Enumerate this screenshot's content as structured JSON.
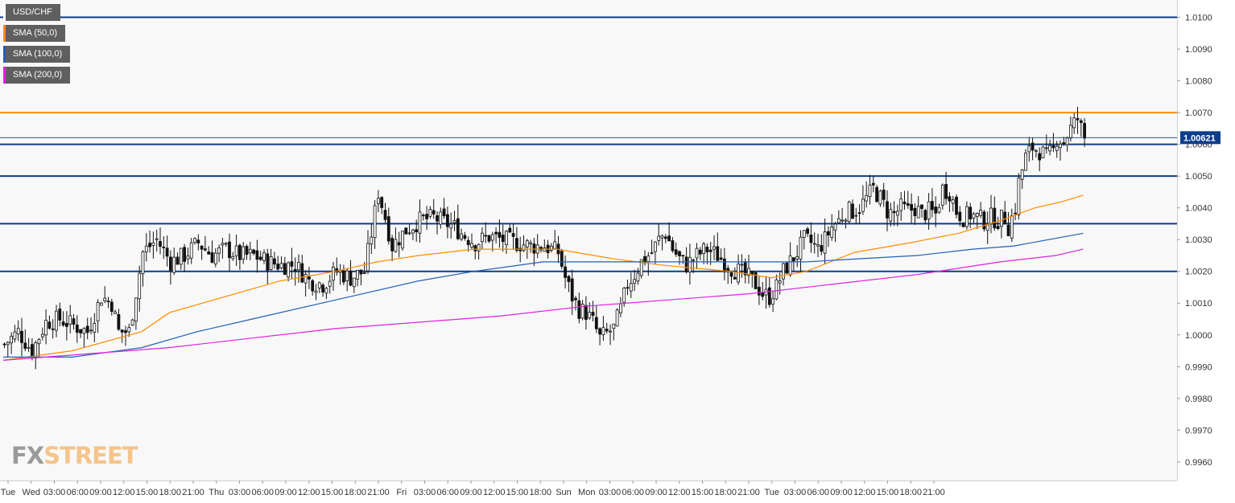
{
  "chart_data": {
    "type": "candlestick",
    "symbol": "USD/CHF",
    "last_price": "1.00621",
    "ylim": [
      0.9952,
      1.0104
    ],
    "y_ticks": [
      "1.0100",
      "1.0090",
      "1.0080",
      "1.0070",
      "1.0060",
      "1.0050",
      "1.0040",
      "1.0030",
      "1.0020",
      "1.0010",
      "1.0000",
      "0.9990",
      "0.9980",
      "0.9970",
      "0.9960"
    ],
    "x_ticks": [
      "Tue",
      "Wed",
      "03:00",
      "06:00",
      "09:00",
      "12:00",
      "15:00",
      "18:00",
      "21:00",
      "Thu",
      "03:00",
      "06:00",
      "09:00",
      "12:00",
      "15:00",
      "18:00",
      "21:00",
      "Fri",
      "03:00",
      "06:00",
      "09:00",
      "12:00",
      "15:00",
      "18:00",
      "Sun",
      "Mon",
      "03:00",
      "06:00",
      "09:00",
      "12:00",
      "15:00",
      "18:00",
      "21:00",
      "Tue",
      "03:00",
      "06:00",
      "09:00",
      "12:00",
      "15:00",
      "18:00",
      "21:00"
    ],
    "horizontal_levels": [
      {
        "value": 1.01,
        "color": "#0d3d8c"
      },
      {
        "value": 1.007,
        "color": "#ff8c00"
      },
      {
        "value": 1.006,
        "color": "#0d3d8c"
      },
      {
        "value": 1.005,
        "color": "#0d3d8c"
      },
      {
        "value": 1.0035,
        "color": "#0d3d8c"
      },
      {
        "value": 1.002,
        "color": "#0d3d8c"
      }
    ],
    "price_path": [
      [
        0,
        0.9997
      ],
      [
        4,
        1.0001
      ],
      [
        8,
        0.9995
      ],
      [
        12,
        1.0004
      ],
      [
        16,
        1.0005
      ],
      [
        20,
        1.0003
      ],
      [
        24,
        1.0001
      ],
      [
        28,
        1.0012
      ],
      [
        31,
        1.001
      ],
      [
        33,
        1.0001
      ],
      [
        36,
        1.0001
      ],
      [
        40,
        1.0026
      ],
      [
        44,
        1.003
      ],
      [
        48,
        1.0023
      ],
      [
        52,
        1.0025
      ],
      [
        56,
        1.0029
      ],
      [
        60,
        1.0025
      ],
      [
        64,
        1.0027
      ],
      [
        68,
        1.0025
      ],
      [
        72,
        1.0025
      ],
      [
        76,
        1.0023
      ],
      [
        80,
        1.0022
      ],
      [
        84,
        1.0022
      ],
      [
        88,
        1.0017
      ],
      [
        92,
        1.0016
      ],
      [
        96,
        1.002
      ],
      [
        100,
        1.0018
      ],
      [
        104,
        1.002
      ],
      [
        106,
        1.0032
      ],
      [
        108,
        1.0045
      ],
      [
        110,
        1.0037
      ],
      [
        112,
        1.0028
      ],
      [
        116,
        1.0033
      ],
      [
        120,
        1.0036
      ],
      [
        124,
        1.0037
      ],
      [
        128,
        1.0035
      ],
      [
        130,
        1.0034
      ],
      [
        132,
        1.0032
      ],
      [
        136,
        1.0029
      ],
      [
        140,
        1.0031
      ],
      [
        144,
        1.003
      ],
      [
        148,
        1.0029
      ],
      [
        152,
        1.0028
      ],
      [
        156,
        1.0028
      ],
      [
        160,
        1.0026
      ],
      [
        162,
        1.0018
      ],
      [
        164,
        1.0012
      ],
      [
        166,
        1.0008
      ],
      [
        168,
        1.0007
      ],
      [
        170,
        1.0004
      ],
      [
        172,
        0.9999
      ],
      [
        176,
        1.0002
      ],
      [
        178,
        1.0008
      ],
      [
        180,
        1.0016
      ],
      [
        182,
        1.0019
      ],
      [
        184,
        1.0023
      ],
      [
        187,
        1.0026
      ],
      [
        189,
        1.003
      ],
      [
        191,
        1.0032
      ],
      [
        193,
        1.0027
      ],
      [
        195,
        1.0024
      ],
      [
        197,
        1.0022
      ],
      [
        200,
        1.0025
      ],
      [
        203,
        1.0027
      ],
      [
        206,
        1.0025
      ],
      [
        208,
        1.0023
      ],
      [
        210,
        1.0021
      ],
      [
        212,
        1.002
      ],
      [
        215,
        1.0018
      ],
      [
        217,
        1.0016
      ],
      [
        219,
        1.0013
      ],
      [
        221,
        1.0012
      ],
      [
        223,
        1.0015
      ],
      [
        225,
        1.002
      ],
      [
        227,
        1.0023
      ],
      [
        229,
        1.0026
      ],
      [
        231,
        1.003
      ],
      [
        233,
        1.0029
      ],
      [
        235,
        1.0027
      ],
      [
        237,
        1.003
      ],
      [
        239,
        1.0034
      ],
      [
        241,
        1.0036
      ],
      [
        243,
        1.0039
      ],
      [
        245,
        1.0039
      ],
      [
        247,
        1.004
      ],
      [
        249,
        1.0043
      ],
      [
        251,
        1.0046
      ],
      [
        253,
        1.0043
      ],
      [
        255,
        1.0039
      ],
      [
        257,
        1.0038
      ],
      [
        259,
        1.004
      ],
      [
        261,
        1.0039
      ],
      [
        263,
        1.004
      ],
      [
        265,
        1.0038
      ],
      [
        267,
        1.0039
      ],
      [
        269,
        1.0038
      ],
      [
        271,
        1.0046
      ],
      [
        273,
        1.0045
      ],
      [
        275,
        1.0039
      ],
      [
        277,
        1.0037
      ],
      [
        279,
        1.0038
      ],
      [
        281,
        1.0037
      ],
      [
        283,
        1.0036
      ],
      [
        285,
        1.0037
      ],
      [
        287,
        1.0036
      ],
      [
        289,
        1.0037
      ],
      [
        290,
        1.0034
      ],
      [
        292,
        1.004
      ],
      [
        293,
        1.0048
      ],
      [
        295,
        1.0056
      ],
      [
        297,
        1.0059
      ],
      [
        299,
        1.0058
      ],
      [
        301,
        1.0056
      ],
      [
        303,
        1.0058
      ],
      [
        304,
        1.0062
      ],
      [
        306,
        1.0061
      ],
      [
        308,
        1.0065
      ],
      [
        310,
        1.0068
      ],
      [
        312,
        1.0062
      ]
    ],
    "sma_series": [
      {
        "label": "SMA (50,0)",
        "color": "#ff8c00",
        "points": [
          [
            0,
            0.9992
          ],
          [
            20,
            0.9995
          ],
          [
            40,
            1.0001
          ],
          [
            48,
            1.0007
          ],
          [
            64,
            1.0012
          ],
          [
            80,
            1.0017
          ],
          [
            96,
            1.002
          ],
          [
            108,
            1.0023
          ],
          [
            120,
            1.0025
          ],
          [
            136,
            1.0027
          ],
          [
            160,
            1.0027
          ],
          [
            176,
            1.0024
          ],
          [
            190,
            1.0022
          ],
          [
            210,
            1.002
          ],
          [
            222,
            1.0018
          ],
          [
            232,
            1.002
          ],
          [
            246,
            1.0026
          ],
          [
            262,
            1.0029
          ],
          [
            276,
            1.0032
          ],
          [
            288,
            1.0036
          ],
          [
            298,
            1.004
          ],
          [
            306,
            1.0042
          ],
          [
            312,
            1.0044
          ]
        ]
      },
      {
        "label": "SMA (100,0)",
        "color": "#1f5fb8",
        "points": [
          [
            0,
            0.9993
          ],
          [
            20,
            0.9993
          ],
          [
            40,
            0.9996
          ],
          [
            56,
            1.0001
          ],
          [
            72,
            1.0005
          ],
          [
            88,
            1.0009
          ],
          [
            104,
            1.0013
          ],
          [
            120,
            1.0017
          ],
          [
            136,
            1.002
          ],
          [
            156,
            1.0023
          ],
          [
            176,
            1.0023
          ],
          [
            196,
            1.0023
          ],
          [
            216,
            1.0023
          ],
          [
            232,
            1.0023
          ],
          [
            248,
            1.0024
          ],
          [
            264,
            1.0025
          ],
          [
            280,
            1.0027
          ],
          [
            292,
            1.0028
          ],
          [
            302,
            1.003
          ],
          [
            312,
            1.0032
          ]
        ]
      },
      {
        "label": "SMA (200,0)",
        "color": "#e020e0",
        "points": [
          [
            0,
            0.9992
          ],
          [
            24,
            0.9994
          ],
          [
            48,
            0.9996
          ],
          [
            72,
            0.9999
          ],
          [
            96,
            1.0002
          ],
          [
            120,
            1.0004
          ],
          [
            144,
            1.0006
          ],
          [
            168,
            1.0009
          ],
          [
            192,
            1.0011
          ],
          [
            216,
            1.0013
          ],
          [
            240,
            1.0016
          ],
          [
            264,
            1.0019
          ],
          [
            288,
            1.0023
          ],
          [
            304,
            1.0025
          ],
          [
            312,
            1.0027
          ]
        ]
      }
    ]
  },
  "legend": [
    {
      "label": "USD/CHF",
      "color": "#ffffff"
    },
    {
      "label": "SMA (50,0)",
      "color": "#ff8c00"
    },
    {
      "label": "SMA (100,0)",
      "color": "#1f5fb8"
    },
    {
      "label": "SMA (200,0)",
      "color": "#e020e0"
    }
  ],
  "watermark": {
    "part_a": "FX",
    "part_b": "STREET"
  }
}
